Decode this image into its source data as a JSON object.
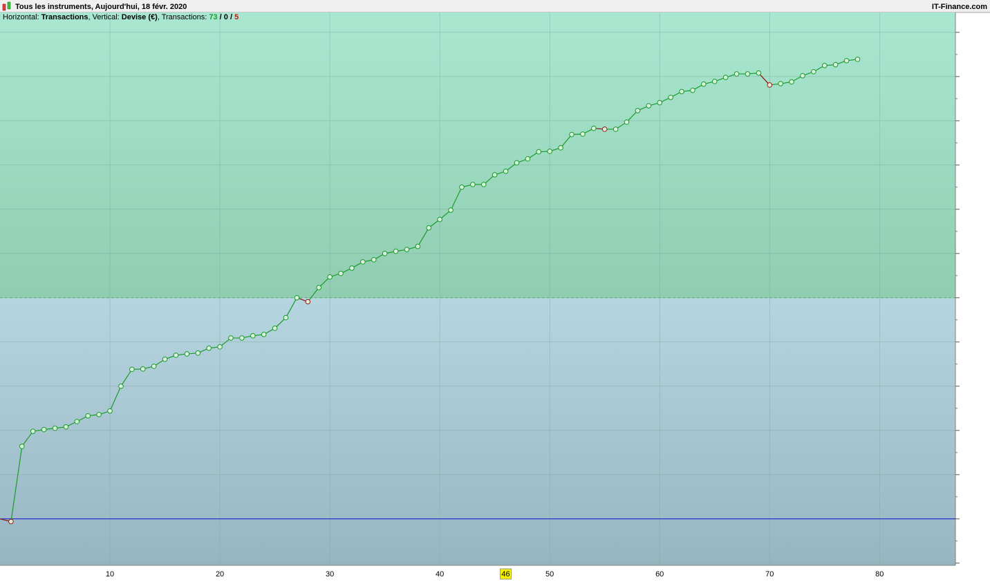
{
  "chart_data": {
    "type": "line",
    "title": "Tous les instruments, Aujourd'hui, 18 févr. 2020",
    "brand": "IT-Finance.com",
    "info": {
      "horizontal_label": "Horizontal: ",
      "horizontal": "Transactions",
      "vertical_label": ", Vertical: ",
      "vertical": "Devise (€)",
      "count_label": ", Transactions: ",
      "winners": 73,
      "separator": " / ",
      "even": 0,
      "losers": 5
    },
    "x": [
      0,
      1,
      2,
      3,
      4,
      5,
      6,
      7,
      8,
      9,
      10,
      11,
      12,
      13,
      14,
      15,
      16,
      17,
      18,
      19,
      20,
      21,
      22,
      23,
      24,
      25,
      26,
      27,
      28,
      29,
      30,
      31,
      32,
      33,
      34,
      35,
      36,
      37,
      38,
      39,
      40,
      41,
      42,
      43,
      44,
      45,
      46,
      47,
      48,
      49,
      50,
      51,
      52,
      53,
      54,
      55,
      56,
      57,
      58,
      59,
      60,
      61,
      62,
      63,
      64,
      65,
      66,
      67,
      68,
      69,
      70,
      71,
      72,
      73,
      74,
      75,
      76,
      77,
      78
    ],
    "series": [
      {
        "name": "Transactions",
        "color": "#1a9a2a",
        "loss_color": "#a01818",
        "values": [
          0,
          -0.06,
          1.64,
          1.98,
          2.02,
          2.05,
          2.08,
          2.2,
          2.33,
          2.36,
          2.44,
          3.0,
          3.38,
          3.39,
          3.45,
          3.61,
          3.7,
          3.73,
          3.75,
          3.86,
          3.89,
          4.09,
          4.09,
          4.14,
          4.17,
          4.31,
          4.55,
          5.0,
          4.91,
          5.23,
          5.47,
          5.55,
          5.67,
          5.81,
          5.86,
          6.0,
          6.05,
          6.09,
          6.16,
          6.58,
          6.77,
          6.98,
          7.5,
          7.56,
          7.56,
          7.78,
          7.86,
          8.05,
          8.14,
          8.3,
          8.31,
          8.39,
          8.69,
          8.7,
          8.83,
          8.81,
          8.81,
          8.97,
          9.23,
          9.34,
          9.41,
          9.53,
          9.66,
          9.69,
          9.83,
          9.89,
          9.98,
          10.06,
          10.06,
          10.08,
          9.81,
          9.84,
          9.88,
          10.02,
          10.11,
          10.25,
          10.27,
          10.36,
          10.39
        ]
      }
    ],
    "xlim": [
      0,
      86.9
    ],
    "xticks": [
      10,
      20,
      30,
      40,
      50,
      60,
      70,
      80
    ],
    "cursor_x": 46,
    "ylim": [
      -1.05,
      11.45
    ],
    "yticks": [
      -1,
      0,
      1,
      2,
      3,
      4,
      5,
      6,
      7,
      8,
      9,
      10,
      11
    ],
    "zero_line": 0,
    "zone_boundary": 5,
    "grid": true
  }
}
